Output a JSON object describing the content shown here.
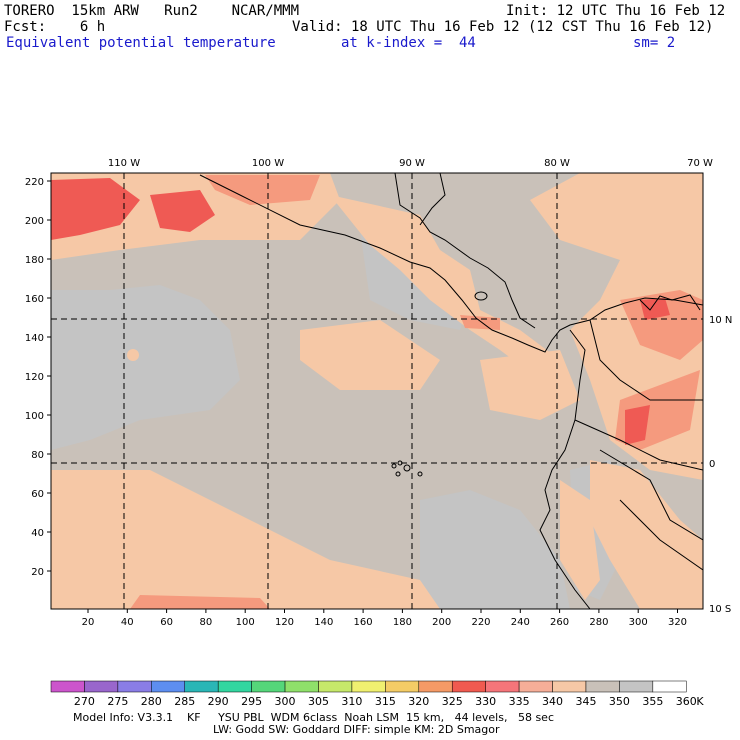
{
  "header": {
    "model": "TORERO  15km ARW   Run2    NCAR/MMM",
    "init": "Init: 12 UTC Thu 16 Feb 12",
    "fcst": "Fcst:    6 h",
    "valid": "Valid: 18 UTC Thu 16 Feb 12 (12 CST Thu 16 Feb 12)",
    "field": "Equivalent potential temperature",
    "level": "at k-index =  44",
    "smoothing": "sm= 2"
  },
  "map": {
    "lon_labels": [
      "110 W",
      "100 W",
      "90 W",
      "80 W",
      "70 W"
    ],
    "lat_labels": [
      "10 N",
      "0",
      "10 S"
    ],
    "y_ticks": [
      "220",
      "200",
      "180",
      "160",
      "140",
      "120",
      "100",
      "80",
      "60",
      "40",
      "20"
    ],
    "x_ticks": [
      "20",
      "40",
      "60",
      "80",
      "100",
      "120",
      "140",
      "160",
      "180",
      "200",
      "220",
      "240",
      "260",
      "280",
      "300",
      "320"
    ],
    "ocean_color": "#c9c1b9",
    "land_color": "#c9c1b9",
    "cool_color": "#c4c4c4",
    "warm_colors": [
      "#f6c8a6",
      "#f59a7e",
      "#ef5a54"
    ]
  },
  "colorbar": {
    "labels": [
      "270",
      "275",
      "280",
      "285",
      "290",
      "295",
      "300",
      "305",
      "310",
      "315",
      "320",
      "325",
      "330",
      "335",
      "340",
      "345",
      "350",
      "355",
      "360"
    ],
    "unit": "K",
    "colors": [
      "#cc55cc",
      "#9966cc",
      "#8a7de6",
      "#5d8ef0",
      "#2ab6b6",
      "#33d6a0",
      "#55d67a",
      "#8fe06a",
      "#c6e86a",
      "#f0f070",
      "#f4cc66",
      "#f59a66",
      "#f05a50",
      "#f5757a",
      "#f6ae98",
      "#f6c8a6",
      "#c9c1b9",
      "#c4c4c4",
      "#ffffff"
    ]
  },
  "footer": {
    "line1": "Model Info: V3.3.1    KF     YSU PBL  WDM 6class  Noah LSM  15 km,   44 levels,   58 sec",
    "line2": "LW: Godd SW: Goddard DIFF: simple KM: 2D Smagor"
  }
}
